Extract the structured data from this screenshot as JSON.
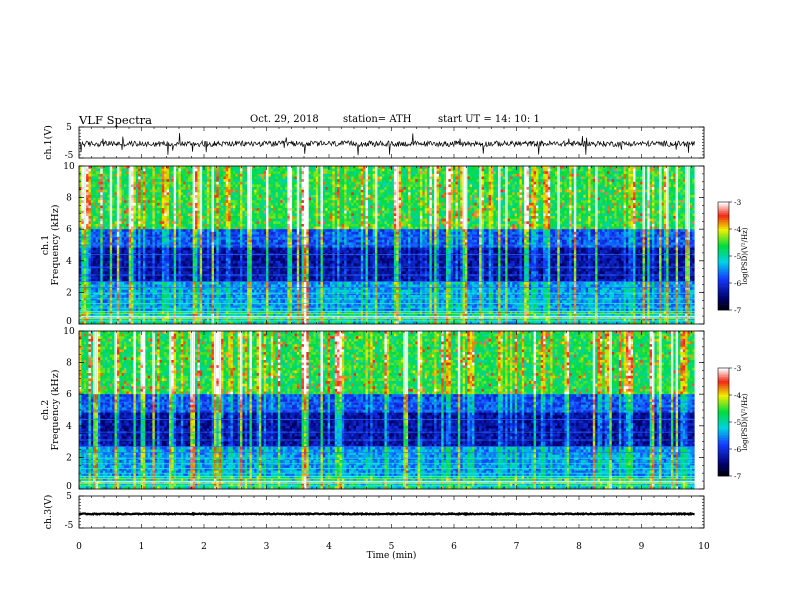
{
  "header": {
    "title": "VLF  Spectra",
    "date": "Oct. 29, 2018",
    "station": "station= ATH",
    "start": "start  UT  =    14: 10: 1"
  },
  "chart_data": [
    {
      "type": "line",
      "panel": "ch1_waveform",
      "ylabel": "ch.1(V)",
      "ylim": [
        -5,
        5
      ],
      "yticks": [
        5,
        -5
      ],
      "xlim": [
        0,
        10
      ],
      "baseline": -0.4,
      "noise_amplitude": 0.9
    },
    {
      "type": "heatmap",
      "panel": "ch1_spectrogram",
      "ylabel": "ch.1 Frequency (kHz)",
      "ylim": [
        0,
        10
      ],
      "yticks": [
        0,
        2,
        4,
        6,
        8,
        10
      ],
      "xlim": [
        0,
        10.0
      ],
      "data_end_min": 9.85,
      "colorbar": {
        "label": "log(PSD)(V²/Hz)",
        "range": [
          -7,
          -3
        ],
        "ticks": [
          -3,
          -4,
          -5,
          -6,
          -7
        ]
      },
      "strong_event_min": 3.6
    },
    {
      "type": "heatmap",
      "panel": "ch2_spectrogram",
      "ylabel": "ch.2 Frequency (kHz)",
      "ylim": [
        0,
        10
      ],
      "yticks": [
        0,
        2,
        4,
        6,
        8,
        10
      ],
      "xlim": [
        0,
        10.0
      ],
      "data_end_min": 9.85,
      "colorbar": {
        "label": "log(PSD)(V²/Hz)",
        "range": [
          -7,
          -3
        ],
        "ticks": [
          -3,
          -4,
          -5,
          -6,
          -7
        ]
      },
      "strong_event_min": 3.6
    },
    {
      "type": "line",
      "panel": "ch3_waveform",
      "ylabel": "ch.3(V)",
      "ylim": [
        -5,
        5
      ],
      "yticks": [
        5,
        -5
      ],
      "xlim": [
        0,
        10
      ],
      "baseline": -0.6,
      "noise_amplitude": 0.15
    }
  ],
  "xaxis": {
    "label": "Time  (min)",
    "ticks": [
      "0",
      "1",
      "2",
      "3",
      "4",
      "5",
      "6",
      "7",
      "8",
      "9",
      "10"
    ]
  },
  "colors": {
    "frame": "#000000",
    "background": "#ffffff"
  }
}
